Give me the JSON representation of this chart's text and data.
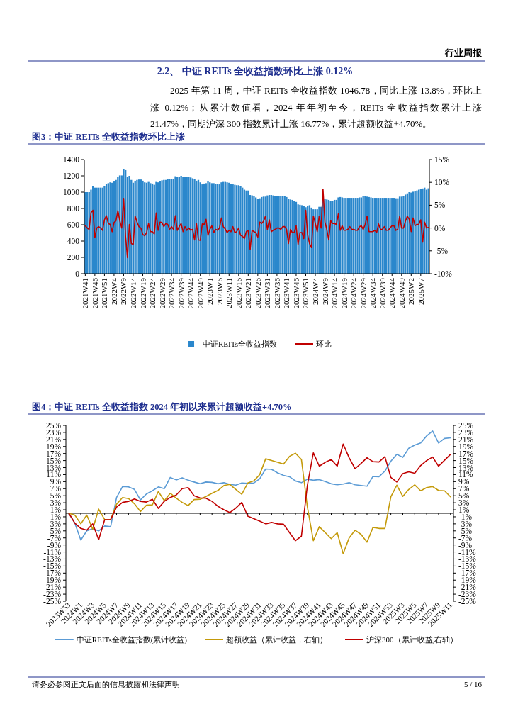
{
  "chart_data": [
    {
      "type": "other",
      "title": "2.2、 中证 REITs 全收益指数环比上涨 0.12%",
      "annotations": [
        "行业周报",
        "2025 年第 11 周，中证 REITs 全收益指数 1046.78，同比上涨 13.8%，环比上涨 0.12%；从累计数值看，2024 年年初至今，REITs 全收益指数累计上涨 21.47%，同期沪深 300 指数累计上涨 16.77%，累计超额收益+4.70%。",
        "请务必参阅正文后面的信息披露和法律声明",
        "5 / 16"
      ]
    },
    {
      "type": "bar",
      "title": "图3：中证 REITs 全收益指数环比上涨",
      "legend": "bottom",
      "categories": [
        "2021W41",
        null,
        null,
        null,
        null,
        "2021W46",
        null,
        null,
        null,
        null,
        "2021W51",
        null,
        null,
        null,
        null,
        "2022W4",
        null,
        null,
        null,
        null,
        "2022W9",
        null,
        null,
        null,
        null,
        "2022W14",
        null,
        null,
        null,
        null,
        "2022W19",
        null,
        null,
        null,
        null,
        "2022W24",
        null,
        null,
        null,
        null,
        "2022W29",
        null,
        null,
        null,
        null,
        "2022W34",
        null,
        null,
        null,
        null,
        "2022W39",
        null,
        null,
        null,
        null,
        "2022W44",
        null,
        null,
        null,
        null,
        "2022W49",
        null,
        null,
        null,
        null,
        "2023W1",
        null,
        null,
        null,
        null,
        "2023W6",
        null,
        null,
        null,
        null,
        "2023W11",
        null,
        null,
        null,
        null,
        "2023W16",
        null,
        null,
        null,
        null,
        "2023W21",
        null,
        null,
        null,
        null,
        "2023W26",
        null,
        null,
        null,
        null,
        "2023W31",
        null,
        null,
        null,
        null,
        "2023W36",
        null,
        null,
        null,
        null,
        "2023W41",
        null,
        null,
        null,
        null,
        "2023W46",
        null,
        null,
        null,
        null,
        "2023W51",
        null,
        null,
        null,
        null,
        "2024W4",
        null,
        null,
        null,
        null,
        "2024W9",
        null,
        null,
        null,
        null,
        "2024W14",
        null,
        null,
        null,
        null,
        "2024W19",
        null,
        null,
        null,
        null,
        "2024W24",
        null,
        null,
        null,
        null,
        "2024W29",
        null,
        null,
        null,
        null,
        "2024W34",
        null,
        null,
        null,
        null,
        "2024W39",
        null,
        null,
        null,
        null,
        "2024W44",
        null,
        null,
        null,
        null,
        "2024W49",
        null,
        null,
        null,
        null,
        "2025W2",
        null,
        null,
        null,
        null,
        "2025W7",
        null,
        null,
        null,
        null
      ],
      "ylim": [
        0,
        1400
      ],
      "yticks": [
        0,
        200,
        400,
        600,
        800,
        1000,
        1200,
        1400
      ],
      "y2lim": [
        -10,
        15
      ],
      "y2ticks": [
        {
          "value": -10,
          "label": "-10%"
        },
        {
          "value": -5,
          "label": "-5%"
        },
        {
          "value": 0,
          "label": "0%"
        },
        {
          "value": 5,
          "label": "5%"
        },
        {
          "value": 10,
          "label": "10%"
        },
        {
          "value": 15,
          "label": "15%"
        }
      ],
      "series": [
        {
          "name": "中证REITs全收益指数",
          "type": "bar",
          "color": "#2a87cc",
          "values": [
            1000,
            1000,
            1000,
            1030,
            1070,
            1055,
            1055,
            1055,
            1055,
            1055,
            1075,
            1100,
            1110,
            1120,
            1115,
            1130,
            1150,
            1185,
            1205,
            1205,
            1285,
            1270,
            1190,
            1200,
            1150,
            1115,
            1140,
            1150,
            1155,
            1155,
            1140,
            1120,
            1115,
            1125,
            1110,
            1105,
            1090,
            1125,
            1120,
            1135,
            1145,
            1150,
            1150,
            1165,
            1165,
            1165,
            1160,
            1195,
            1190,
            1185,
            1200,
            1190,
            1190,
            1185,
            1185,
            1180,
            1170,
            1160,
            1140,
            1150,
            1120,
            1095,
            1105,
            1110,
            1130,
            1120,
            1110,
            1110,
            1100,
            1100,
            1095,
            1120,
            1125,
            1125,
            1120,
            1115,
            1100,
            1095,
            1090,
            1085,
            1085,
            1070,
            1055,
            1030,
            1020,
            1020,
            965,
            960,
            950,
            935,
            920,
            925,
            940,
            945,
            945,
            960,
            965,
            965,
            960,
            955,
            955,
            955,
            955,
            955,
            955,
            940,
            915,
            910,
            905,
            890,
            880,
            850,
            845,
            840,
            830,
            815,
            835,
            840,
            810,
            790,
            790,
            790,
            820,
            820,
            920,
            915,
            910,
            905,
            890,
            895,
            905,
            905,
            935,
            940,
            935,
            930,
            930,
            930,
            930,
            930,
            930,
            930,
            930,
            935,
            935,
            950,
            950,
            945,
            940,
            935,
            930,
            930,
            930,
            930,
            930,
            930,
            930,
            930,
            930,
            930,
            930,
            930,
            925,
            925,
            945,
            945,
            955,
            970,
            985,
            1000,
            995,
            1005,
            1010,
            1020,
            1030,
            1035,
            1045,
            1055,
            1030,
            1047
          ]
        },
        {
          "name": "环比",
          "type": "line",
          "axis": "y2",
          "color": "#c00000",
          "values": [
            0.5,
            0,
            -0.3,
            3.4,
            3.9,
            -2.1,
            0,
            0.3,
            0,
            -0.5,
            1.8,
            2.7,
            1.0,
            0.8,
            -0.8,
            1.2,
            1.6,
            3.8,
            1.6,
            0,
            6.5,
            -1.8,
            -6.5,
            0.8,
            -3.4,
            -3.6,
            2.6,
            1.3,
            0.3,
            0,
            -1.4,
            -1.7,
            -1.0,
            1.0,
            -0.8,
            -0.8,
            -1.3,
            3.3,
            -0.5,
            1.3,
            1.2,
            0.3,
            1.0,
            0.8,
            -0.3,
            0.3,
            -0.3,
            2.7,
            -0.5,
            0.3,
            1.0,
            -0.8,
            0.3,
            -0.5,
            0,
            -0.5,
            -0.3,
            -2.6,
            1.0,
            -2.6,
            -2.7,
            0.9,
            0.8,
            1.9,
            -1.6,
            -0.3,
            0.5,
            -1.0,
            -0.3,
            -0.5,
            0,
            2.2,
            0.3,
            -0.2,
            -1.0,
            -0.5,
            -0.8,
            0.3,
            -1.0,
            -0.8,
            0,
            -1.6,
            -1.8,
            -2.3,
            -0.8,
            -0.5,
            -4.7,
            -0.5,
            -0.8,
            -1.0,
            -2.0,
            1.3,
            1.0,
            1.5,
            2.6,
            -0.3,
            1.8,
            -0.8,
            -0.5,
            -0.3,
            0,
            0,
            -0.3,
            0.3,
            0.3,
            -0.3,
            -3.4,
            -0.3,
            -1.0,
            -1.0,
            0.5,
            -3.6,
            -1.0,
            -1.0,
            -2.3,
            3.9,
            -1.5,
            -3.4,
            -4.3,
            2.6,
            1.0,
            -0.8,
            2.6,
            0,
            8.5,
            1.3,
            -0.3,
            -2.6,
            1.6,
            1.0,
            1.0,
            0.8,
            3.1,
            -0.5,
            0.5,
            -0.5,
            -0.5,
            -0.3,
            0.3,
            -0.3,
            -0.3,
            -0.5,
            -0.5,
            0.3,
            0.5,
            -0.3,
            0.8,
            2.6,
            -0.8,
            -0.8,
            -0.8,
            -0.5,
            -1.0,
            0.9,
            -0.3,
            -0.3,
            0.3,
            -0.5,
            -0.5,
            0,
            0.5,
            0.5,
            -0.5,
            -0.3,
            2.6,
            0,
            0,
            1.5,
            2.6,
            1.9,
            -0.8,
            2.2,
            0.5,
            0.8,
            0.8,
            1.8,
            -3.1,
            1.3,
            0,
            0.12
          ]
        }
      ]
    },
    {
      "type": "line",
      "title": "图4：中证 REITs 全收益指数 2024 年初以来累计超额收益+4.70%",
      "legend": "bottom",
      "categories": [
        "2023W53",
        null,
        "2024W1",
        null,
        "2024W3",
        null,
        "2024W5",
        null,
        "2024W7",
        null,
        "2024W9",
        null,
        "2024W11",
        null,
        "2024W13",
        null,
        "2024W15",
        null,
        "2024W17",
        null,
        "2024W19",
        null,
        "2024W21",
        null,
        "2024W23",
        null,
        "2024W25",
        null,
        "2024W27",
        null,
        "2024W29",
        null,
        "2024W31",
        null,
        "2024W33",
        null,
        "2024W35",
        null,
        "2024W37",
        null,
        "2024W39",
        null,
        "2024W41",
        null,
        "2024W43",
        null,
        "2024W45",
        null,
        "2024W47",
        null,
        "2024W49",
        null,
        "2024W51",
        null,
        "2024W53",
        null,
        "2025W3",
        null,
        "2025W5",
        null,
        "2025W7",
        null,
        "2025W9",
        null,
        "2025W11"
      ],
      "ylim": [
        -25,
        25
      ],
      "yticks": [
        {
          "value": -25,
          "label": "-25%"
        },
        {
          "value": -23,
          "label": "-23%"
        },
        {
          "value": -21,
          "label": "-21%"
        },
        {
          "value": -19,
          "label": "-19%"
        },
        {
          "value": -17,
          "label": "-17%"
        },
        {
          "value": -15,
          "label": "-15%"
        },
        {
          "value": -13,
          "label": "-13%"
        },
        {
          "value": -11,
          "label": "-11%"
        },
        {
          "value": -9,
          "label": "-9%"
        },
        {
          "value": -7,
          "label": "-7%"
        },
        {
          "value": -5,
          "label": "-5%"
        },
        {
          "value": -3,
          "label": "-3%"
        },
        {
          "value": -1,
          "label": "-1%"
        },
        {
          "value": 1,
          "label": "1%"
        },
        {
          "value": 3,
          "label": "3%"
        },
        {
          "value": 5,
          "label": "5%"
        },
        {
          "value": 7,
          "label": "7%"
        },
        {
          "value": 9,
          "label": "9%"
        },
        {
          "value": 11,
          "label": "11%"
        },
        {
          "value": 13,
          "label": "13%"
        },
        {
          "value": 15,
          "label": "15%"
        },
        {
          "value": 17,
          "label": "17%"
        },
        {
          "value": 19,
          "label": "19%"
        },
        {
          "value": 21,
          "label": "21%"
        },
        {
          "value": 23,
          "label": "23%"
        },
        {
          "value": 25,
          "label": "25%"
        }
      ],
      "y2lim": [
        -25,
        25
      ],
      "y2ticks": [
        {
          "value": -25,
          "label": "-25%"
        },
        {
          "value": -23,
          "label": "-23%"
        },
        {
          "value": -21,
          "label": "-21%"
        },
        {
          "value": -19,
          "label": "-19%"
        },
        {
          "value": -17,
          "label": "-17%"
        },
        {
          "value": -15,
          "label": "-15%"
        },
        {
          "value": -13,
          "label": "-13%"
        },
        {
          "value": -11,
          "label": "-11%"
        },
        {
          "value": -9,
          "label": "-9%"
        },
        {
          "value": -7,
          "label": "-7%"
        },
        {
          "value": -5,
          "label": "-5%"
        },
        {
          "value": -3,
          "label": "-3%"
        },
        {
          "value": -1,
          "label": "-1%"
        },
        {
          "value": 1,
          "label": "1%"
        },
        {
          "value": 3,
          "label": "3%"
        },
        {
          "value": 5,
          "label": "5%"
        },
        {
          "value": 7,
          "label": "7%"
        },
        {
          "value": 9,
          "label": "9%"
        },
        {
          "value": 11,
          "label": "11%"
        },
        {
          "value": 13,
          "label": "13%"
        },
        {
          "value": 15,
          "label": "15%"
        },
        {
          "value": 17,
          "label": "17%"
        },
        {
          "value": 19,
          "label": "19%"
        },
        {
          "value": 21,
          "label": "21%"
        },
        {
          "value": 23,
          "label": "23%"
        },
        {
          "value": 25,
          "label": "25%"
        }
      ],
      "series": [
        {
          "name": "中证REITs全收益指数(累计收益)",
          "color": "#5b9bd5",
          "values": [
            0,
            -2.8,
            -7.6,
            -5,
            -4.4,
            -5,
            -3.6,
            -3.8,
            4.5,
            7.6,
            7.5,
            6.8,
            3.8,
            5.5,
            6.4,
            7.5,
            7.0,
            10.2,
            9.5,
            10.1,
            9.4,
            8.9,
            8.4,
            8.9,
            8.8,
            8.4,
            8.7,
            8.2,
            8.0,
            8.6,
            8.5,
            8.6,
            9.8,
            12.6,
            12.5,
            11.5,
            10.8,
            10.4,
            9.2,
            8.7,
            9.7,
            9.4,
            9.6,
            9.0,
            8.4,
            8.1,
            8.3,
            8.7,
            8.1,
            7.9,
            7.7,
            10.5,
            10.4,
            12.0,
            14.8,
            16.8,
            15.9,
            18.5,
            19.4,
            20.0,
            22.0,
            23.4,
            20.0,
            21.3,
            21.47
          ]
        },
        {
          "name": "超额收益（累计收益，右轴）",
          "axis": "y2",
          "color": "#c49a0a",
          "values": [
            0,
            -0.5,
            -3,
            -0.5,
            -4.5,
            1.2,
            -1.8,
            -1.8,
            2.6,
            4.5,
            4.2,
            2.7,
            0.5,
            2.3,
            2.4,
            6.2,
            3.6,
            5.7,
            4.3,
            3.1,
            2.2,
            3.9,
            4.0,
            4.8,
            5.7,
            6.5,
            7.9,
            8.2,
            6.8,
            5.4,
            8.6,
            9.2,
            11.0,
            15.5,
            15.0,
            14.5,
            14.0,
            16.2,
            17.1,
            15.3,
            1.8,
            -7.8,
            -3.8,
            -5.5,
            -7.2,
            -5.5,
            -11.5,
            -7.0,
            -4.8,
            -6.0,
            -8.2,
            -4.0,
            -4.3,
            -4.3,
            4.7,
            8.0,
            4.8,
            6.8,
            8.1,
            6.4,
            7.3,
            7.6,
            6.5,
            6.4,
            4.7
          ]
        },
        {
          "name": "沪深300（累计收益,右轴）",
          "axis": "y2",
          "color": "#c00000",
          "values": [
            0,
            -2.8,
            -4.3,
            -4.8,
            -3,
            -7.5,
            -1.8,
            -1.8,
            1.8,
            3.1,
            3.4,
            4.1,
            3.4,
            3.2,
            4.0,
            1.4,
            3.4,
            4.5,
            5.2,
            7.0,
            7.3,
            5.0,
            4.4,
            4.3,
            3.4,
            2.0,
            1.0,
            0.2,
            1.5,
            3.1,
            -0.8,
            -1.5,
            -2.2,
            -3.0,
            -2.6,
            -3.0,
            -3.1,
            -5.5,
            -7.8,
            -6.5,
            8,
            17.2,
            13.4,
            14.5,
            15.3,
            13.4,
            19.7,
            15.8,
            12.7,
            14.2,
            15.8,
            14.7,
            14.6,
            16.1,
            10.2,
            8.9,
            11.3,
            11.8,
            11.4,
            13.6,
            15.0,
            16.0,
            13.4,
            15.1,
            16.77
          ]
        }
      ]
    }
  ]
}
